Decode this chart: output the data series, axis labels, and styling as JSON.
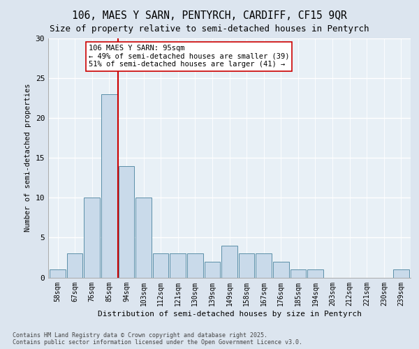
{
  "title1": "106, MAES Y SARN, PENTYRCH, CARDIFF, CF15 9QR",
  "title2": "Size of property relative to semi-detached houses in Pentyrch",
  "xlabel": "Distribution of semi-detached houses by size in Pentyrch",
  "ylabel": "Number of semi-detached properties",
  "bins": [
    "58sqm",
    "67sqm",
    "76sqm",
    "85sqm",
    "94sqm",
    "103sqm",
    "112sqm",
    "121sqm",
    "130sqm",
    "139sqm",
    "149sqm",
    "158sqm",
    "167sqm",
    "176sqm",
    "185sqm",
    "194sqm",
    "203sqm",
    "212sqm",
    "221sqm",
    "230sqm",
    "239sqm"
  ],
  "values": [
    1,
    3,
    10,
    23,
    14,
    10,
    3,
    3,
    3,
    2,
    4,
    3,
    3,
    2,
    1,
    1,
    0,
    0,
    0,
    0,
    1
  ],
  "bar_color": "#c9daea",
  "bar_edge_color": "#5b8fa8",
  "subject_vline_x": 3.5,
  "subject_line_color": "#cc0000",
  "annotation_text": "106 MAES Y SARN: 95sqm\n← 49% of semi-detached houses are smaller (39)\n51% of semi-detached houses are larger (41) →",
  "annotation_box_facecolor": "#ffffff",
  "annotation_box_edgecolor": "#cc0000",
  "footer_text": "Contains HM Land Registry data © Crown copyright and database right 2025.\nContains public sector information licensed under the Open Government Licence v3.0.",
  "ylim": [
    0,
    30
  ],
  "yticks": [
    0,
    5,
    10,
    15,
    20,
    25,
    30
  ],
  "fig_bg_color": "#dce5ef",
  "plot_bg_color": "#e8f0f6",
  "title1_fontsize": 10.5,
  "title2_fontsize": 9
}
